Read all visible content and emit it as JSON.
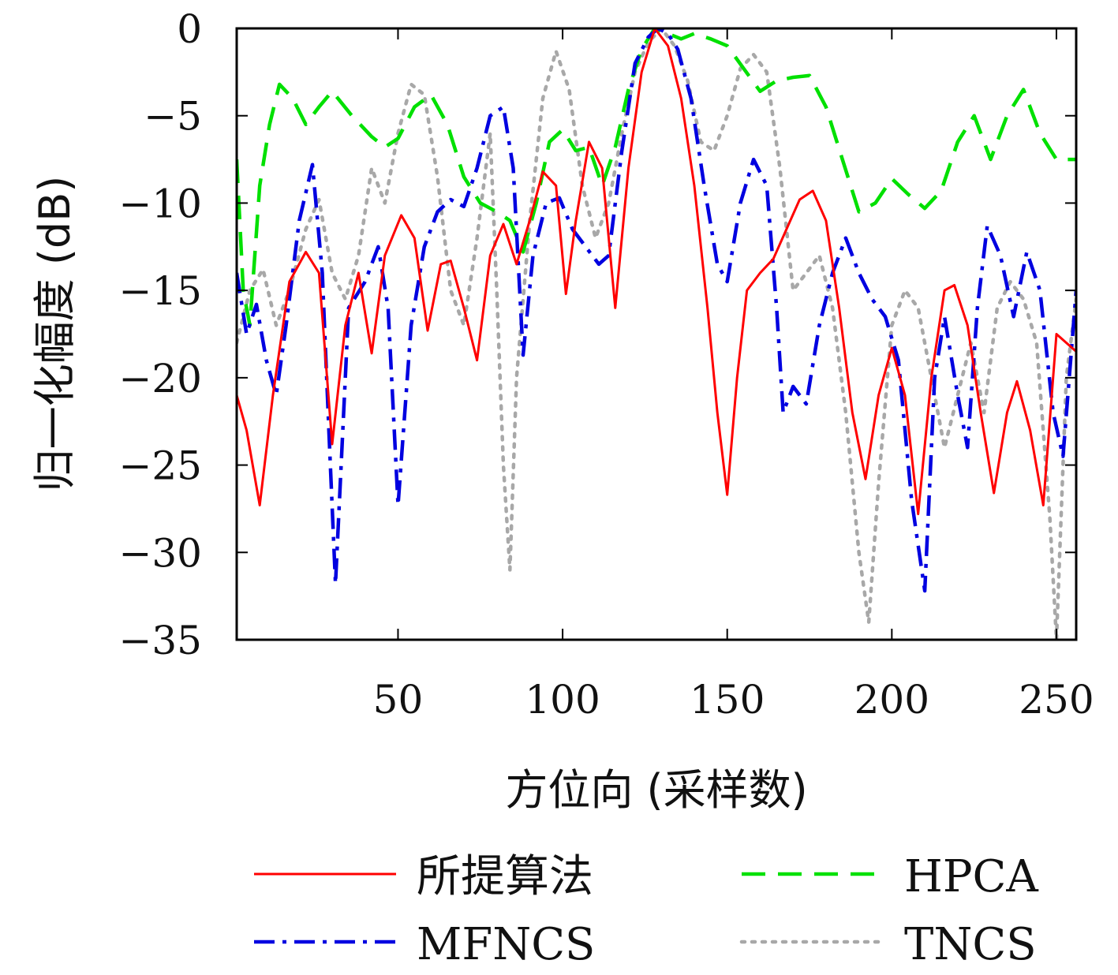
{
  "chart_data": {
    "type": "line",
    "title": "",
    "xlabel": "方位向 (采样数)",
    "ylabel": "归一化幅度 (dB)",
    "xlim": [
      1,
      256
    ],
    "ylim": [
      -35,
      0
    ],
    "xticks": [
      50,
      100,
      150,
      200,
      250
    ],
    "yticks": [
      0,
      -5,
      -10,
      -15,
      -20,
      -25,
      -30,
      -35
    ],
    "xtick_labels": [
      "50",
      "100",
      "150",
      "200",
      "250"
    ],
    "ytick_labels": [
      "0",
      "−5",
      "−10",
      "−15",
      "−20",
      "−25",
      "−30",
      "−35"
    ],
    "grid": false,
    "legend": "bottom",
    "series": [
      {
        "name": "所提算法",
        "color": "#ff0000",
        "style": "solid",
        "x": [
          1,
          4,
          8,
          12,
          17,
          22,
          26,
          30,
          34,
          38,
          42,
          46,
          51,
          55,
          59,
          63,
          66,
          70,
          74,
          78,
          82,
          86,
          90,
          94,
          98,
          101,
          104,
          108,
          112,
          116,
          120,
          124,
          128,
          132,
          136,
          140,
          144,
          147,
          150,
          153,
          156,
          160,
          164,
          168,
          172,
          176,
          180,
          184,
          188,
          192,
          196,
          200,
          204,
          208,
          212,
          216,
          219,
          223,
          227,
          231,
          235,
          238,
          242,
          246,
          250,
          256
        ],
        "y": [
          -21,
          -23,
          -27.3,
          -21,
          -14.5,
          -12.8,
          -14,
          -23.8,
          -17,
          -14,
          -18.6,
          -13,
          -10.7,
          -12,
          -17.3,
          -13.5,
          -13.3,
          -16,
          -19,
          -13,
          -11.2,
          -13.5,
          -11,
          -8.2,
          -9,
          -15.2,
          -11,
          -6.5,
          -8,
          -16,
          -8,
          -2.5,
          0,
          -1,
          -4,
          -9,
          -16,
          -22,
          -26.7,
          -20,
          -15,
          -14,
          -13.2,
          -11.5,
          -9.8,
          -9.3,
          -11,
          -16,
          -22,
          -25.8,
          -21,
          -18.3,
          -21,
          -27.8,
          -20,
          -15,
          -14.7,
          -17,
          -22,
          -26.6,
          -22,
          -20.2,
          -23,
          -27.3,
          -17.5,
          -18.5
        ]
      },
      {
        "name": "HPCA",
        "color": "#00e000",
        "style": "dashed",
        "x": [
          1,
          3,
          5,
          8,
          11,
          14,
          18,
          22,
          26,
          30,
          36,
          42,
          46,
          50,
          55,
          60,
          65,
          70,
          75,
          80,
          84,
          88,
          92,
          96,
          100,
          104,
          108,
          112,
          116,
          120,
          124,
          128,
          132,
          136,
          140,
          145,
          150,
          155,
          160,
          165,
          170,
          175,
          180,
          185,
          190,
          195,
          200,
          205,
          210,
          215,
          220,
          225,
          230,
          235,
          240,
          245,
          250,
          256
        ],
        "y": [
          -7.5,
          -15,
          -17,
          -9,
          -5.5,
          -3.2,
          -4,
          -5.5,
          -4.5,
          -3.6,
          -5,
          -6.2,
          -6.8,
          -6.3,
          -4.5,
          -3.8,
          -5.5,
          -8.5,
          -10,
          -10.5,
          -11,
          -12.8,
          -10,
          -6.5,
          -5.8,
          -7,
          -6.8,
          -9,
          -6.8,
          -3.5,
          -1.2,
          0,
          -0.3,
          -0.6,
          -0.3,
          -0.6,
          -1,
          -2.3,
          -3.6,
          -3,
          -2.8,
          -2.7,
          -4.5,
          -7.5,
          -10.5,
          -10,
          -8.6,
          -9.5,
          -10.3,
          -9.3,
          -6.5,
          -5,
          -7.5,
          -5,
          -3.5,
          -6,
          -7.5,
          -7.5
        ]
      },
      {
        "name": "MFNCS",
        "color": "#0000e0",
        "style": "dashdot",
        "x": [
          1,
          4,
          7,
          10,
          13,
          16,
          20,
          24,
          27,
          29,
          31,
          35,
          40,
          44,
          47,
          50,
          54,
          58,
          62,
          66,
          70,
          74,
          78,
          82,
          85,
          88,
          91,
          95,
          99,
          103,
          107,
          111,
          114,
          118,
          122,
          126,
          129,
          132,
          135,
          139,
          143,
          147,
          150,
          154,
          158,
          162,
          165,
          167,
          170,
          174,
          178,
          182,
          186,
          190,
          194,
          198,
          202,
          206,
          210,
          213,
          216,
          220,
          223,
          226,
          229,
          233,
          237,
          241,
          245,
          249,
          252,
          256
        ],
        "y": [
          -14,
          -17.5,
          -15.8,
          -19,
          -21,
          -17,
          -11,
          -7.8,
          -14,
          -23,
          -31.8,
          -16,
          -14.5,
          -12.5,
          -16,
          -27.3,
          -17,
          -12.5,
          -10.5,
          -9.8,
          -10.2,
          -8,
          -5,
          -4.5,
          -8,
          -18.7,
          -13,
          -10,
          -9.7,
          -11.5,
          -12.5,
          -13.5,
          -13,
          -7,
          -2,
          -0.5,
          0,
          -0.3,
          -1.2,
          -4,
          -9,
          -13.5,
          -14.5,
          -10,
          -7.5,
          -9,
          -16,
          -22,
          -20.5,
          -21.5,
          -17,
          -14,
          -12,
          -14,
          -15.5,
          -16.5,
          -19,
          -27,
          -32.2,
          -20,
          -16.5,
          -21,
          -24,
          -16,
          -11.3,
          -13,
          -16.5,
          -12.8,
          -15,
          -22,
          -24.5,
          -15
        ]
      },
      {
        "name": "TNCS",
        "color": "#a8a8a8",
        "style": "dotted",
        "x": [
          1,
          5,
          9,
          13,
          17,
          22,
          26,
          30,
          34,
          38,
          42,
          46,
          50,
          54,
          58,
          62,
          66,
          70,
          74,
          78,
          80,
          82,
          84,
          86,
          90,
          94,
          98,
          102,
          106,
          110,
          114,
          118,
          122,
          126,
          130,
          134,
          138,
          142,
          146,
          150,
          154,
          158,
          162,
          166,
          170,
          174,
          178,
          182,
          186,
          190,
          193,
          196,
          200,
          204,
          208,
          212,
          216,
          220,
          224,
          228,
          232,
          236,
          240,
          244,
          248,
          250,
          253,
          256
        ],
        "y": [
          -18,
          -15,
          -13.8,
          -17,
          -15,
          -11.5,
          -9.8,
          -14,
          -15.5,
          -13,
          -8,
          -10,
          -6,
          -3.2,
          -3.8,
          -8.5,
          -15,
          -17,
          -12,
          -6,
          -15,
          -25,
          -31,
          -20,
          -11,
          -4,
          -1.3,
          -3.5,
          -9,
          -12,
          -10,
          -6,
          -2.5,
          -0.8,
          0,
          -1,
          -3,
          -6.5,
          -7,
          -5,
          -2.3,
          -1.5,
          -2.5,
          -8,
          -15,
          -14,
          -13,
          -16,
          -22,
          -30,
          -34,
          -26,
          -17,
          -15,
          -16,
          -20,
          -24,
          -21,
          -18,
          -22,
          -16,
          -14.5,
          -15.5,
          -18,
          -28,
          -35,
          -20,
          -15.5
        ]
      }
    ]
  }
}
